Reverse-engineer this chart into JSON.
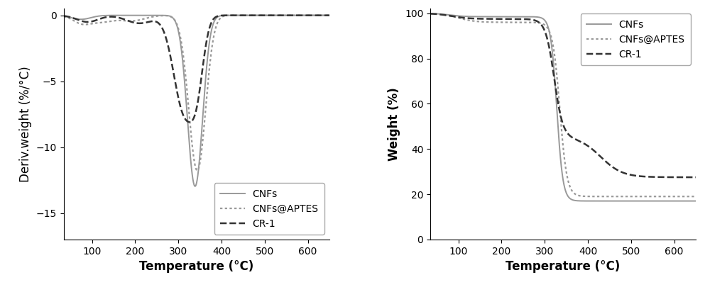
{
  "left_chart": {
    "xlabel": "Temperature (°C)",
    "ylabel": "Deriv.weight (%/°C)",
    "xlim": [
      35,
      650
    ],
    "ylim": [
      -17,
      0.5
    ],
    "yticks": [
      0,
      -5,
      -10,
      -15
    ],
    "xticks": [
      100,
      200,
      300,
      400,
      500,
      600
    ],
    "legend_labels": [
      "CNFs",
      "CNFs@APTES",
      "CR-1"
    ],
    "legend_loc": "lower right"
  },
  "right_chart": {
    "xlabel": "Temperature (°C)",
    "ylabel": "Weight (%)",
    "xlim": [
      35,
      650
    ],
    "ylim": [
      0,
      102
    ],
    "yticks": [
      0,
      20,
      40,
      60,
      80,
      100
    ],
    "xticks": [
      100,
      200,
      300,
      400,
      500,
      600
    ],
    "legend_labels": [
      "CNFs",
      "CNFs@APTES",
      "CR-1"
    ],
    "legend_loc": "upper right"
  },
  "line_color_cnfs": "#999999",
  "line_color_aptes": "#999999",
  "line_color_cr1": "#333333",
  "font_size_label": 12,
  "font_size_tick": 10,
  "font_size_legend": 10
}
